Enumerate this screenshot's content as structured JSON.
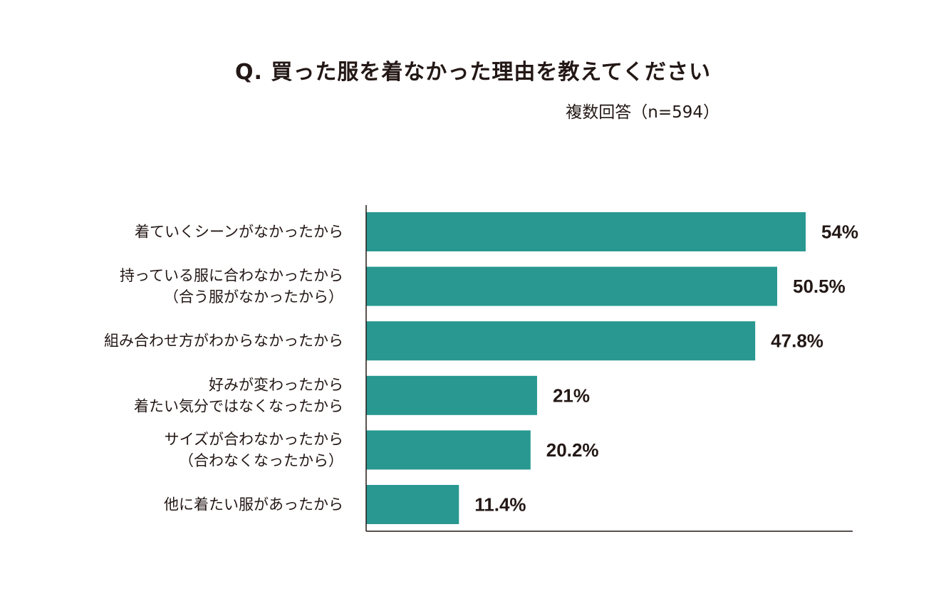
{
  "title": "Q. 買った服を着なかった理由を教えてください",
  "subtitle": "複数回答（n=594）",
  "colors": {
    "bar": "#289891",
    "axis": "#231815",
    "text": "#231815"
  },
  "chart_data": {
    "type": "bar",
    "orientation": "horizontal",
    "unit": "%",
    "xlim": [
      0,
      61
    ],
    "grid": false,
    "categories": [
      [
        "着ていくシーンがなかったから"
      ],
      [
        "持っている服に合わなかったから",
        "（合う服がなかったから）"
      ],
      [
        "組み合わせ方がわからなかったから"
      ],
      [
        "好みが変わったから",
        "着たい気分ではなくなったから"
      ],
      [
        "サイズが合わなかったから",
        "（合わなくなったから）"
      ],
      [
        "他に着たい服があったから"
      ]
    ],
    "values": [
      54,
      50.5,
      47.8,
      21,
      20.2,
      11.4
    ],
    "value_labels": [
      "54%",
      "50.5%",
      "47.8%",
      "21%",
      "20.2%",
      "11.4%"
    ]
  }
}
